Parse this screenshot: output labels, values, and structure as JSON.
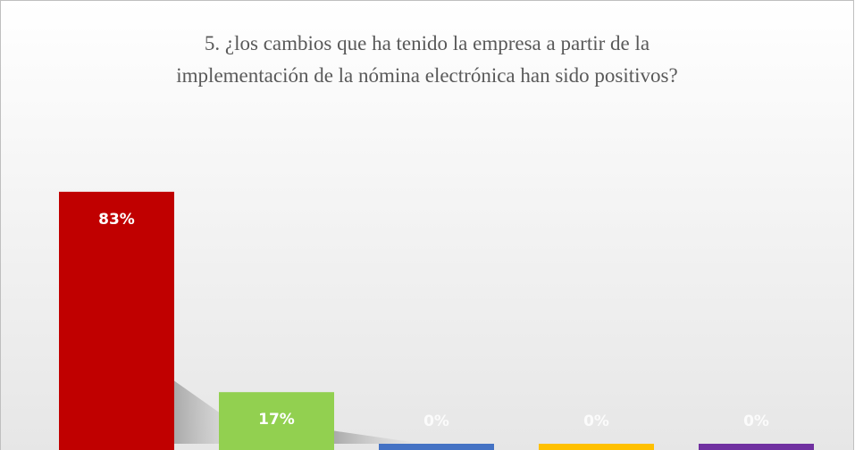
{
  "chart_data": {
    "type": "bar",
    "title": [
      "5. ¿los cambios que ha tenido la empresa a partir de la",
      "implementación de la nómina electrónica han sido positivos?"
    ],
    "categories": [
      null,
      null,
      null,
      null,
      null
    ],
    "values": [
      83,
      17,
      0,
      0,
      0
    ],
    "value_labels": [
      "83%",
      "17%",
      "0%",
      "0%",
      "0%"
    ],
    "colors": [
      "#c00000",
      "#92d050",
      "#4472c4",
      "#ffc000",
      "#7030a0"
    ]
  }
}
